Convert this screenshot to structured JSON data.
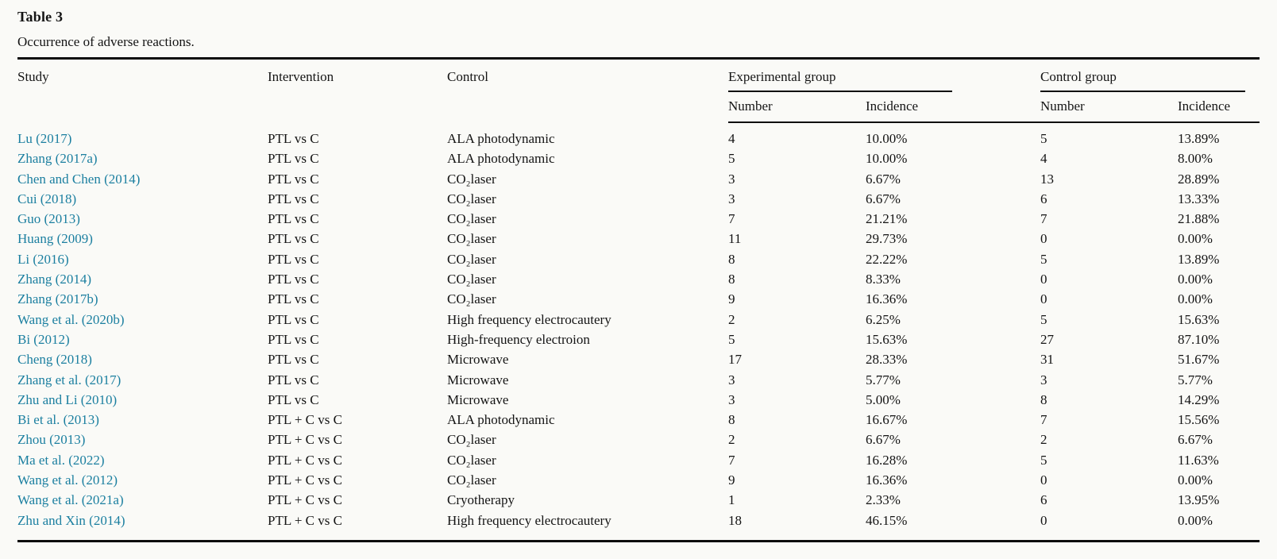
{
  "page": {
    "background": "#fafaf7",
    "link_color": "#1b7fa0",
    "rule_color": "#0d0d0d"
  },
  "table": {
    "label": "Table 3",
    "caption": "Occurrence of adverse reactions.",
    "columns": {
      "study": "Study",
      "intervention": "Intervention",
      "control": "Control",
      "experimental_group": "Experimental group",
      "control_group": "Control group",
      "exp_number": "Number",
      "exp_incidence": "Incidence",
      "ctl_number": "Number",
      "ctl_incidence": "Incidence"
    },
    "rows": [
      {
        "study": "Lu (2017)",
        "intervention": "PTL vs C",
        "control": "ALA photodynamic",
        "exp_number": "4",
        "exp_incidence": "10.00%",
        "ctl_number": "5",
        "ctl_incidence": "13.89%"
      },
      {
        "study": "Zhang (2017a)",
        "intervention": "PTL vs C",
        "control": "ALA photodynamic",
        "exp_number": "5",
        "exp_incidence": "10.00%",
        "ctl_number": "4",
        "ctl_incidence": "8.00%"
      },
      {
        "study": "Chen and Chen (2014)",
        "intervention": "PTL vs C",
        "control": "CO₂laser",
        "exp_number": "3",
        "exp_incidence": "6.67%",
        "ctl_number": "13",
        "ctl_incidence": "28.89%"
      },
      {
        "study": "Cui (2018)",
        "intervention": "PTL vs C",
        "control": "CO₂laser",
        "exp_number": "3",
        "exp_incidence": "6.67%",
        "ctl_number": "6",
        "ctl_incidence": "13.33%"
      },
      {
        "study": "Guo (2013)",
        "intervention": "PTL vs C",
        "control": "CO₂laser",
        "exp_number": "7",
        "exp_incidence": "21.21%",
        "ctl_number": "7",
        "ctl_incidence": "21.88%"
      },
      {
        "study": "Huang (2009)",
        "intervention": "PTL vs C",
        "control": "CO₂laser",
        "exp_number": "11",
        "exp_incidence": "29.73%",
        "ctl_number": "0",
        "ctl_incidence": "0.00%"
      },
      {
        "study": "Li (2016)",
        "intervention": "PTL vs C",
        "control": "CO₂laser",
        "exp_number": "8",
        "exp_incidence": "22.22%",
        "ctl_number": "5",
        "ctl_incidence": "13.89%"
      },
      {
        "study": "Zhang (2014)",
        "intervention": "PTL vs C",
        "control": "CO₂laser",
        "exp_number": "8",
        "exp_incidence": "8.33%",
        "ctl_number": "0",
        "ctl_incidence": "0.00%"
      },
      {
        "study": "Zhang (2017b)",
        "intervention": "PTL vs C",
        "control": "CO₂laser",
        "exp_number": "9",
        "exp_incidence": "16.36%",
        "ctl_number": "0",
        "ctl_incidence": "0.00%"
      },
      {
        "study": "Wang et al. (2020b)",
        "intervention": "PTL vs C",
        "control": "High frequency electrocautery",
        "exp_number": "2",
        "exp_incidence": "6.25%",
        "ctl_number": "5",
        "ctl_incidence": "15.63%"
      },
      {
        "study": "Bi (2012)",
        "intervention": "PTL vs C",
        "control": "High-frequency electroion",
        "exp_number": "5",
        "exp_incidence": "15.63%",
        "ctl_number": "27",
        "ctl_incidence": "87.10%"
      },
      {
        "study": "Cheng (2018)",
        "intervention": "PTL vs C",
        "control": "Microwave",
        "exp_number": "17",
        "exp_incidence": "28.33%",
        "ctl_number": "31",
        "ctl_incidence": "51.67%"
      },
      {
        "study": "Zhang et al. (2017)",
        "intervention": "PTL vs C",
        "control": "Microwave",
        "exp_number": "3",
        "exp_incidence": "5.77%",
        "ctl_number": "3",
        "ctl_incidence": "5.77%"
      },
      {
        "study": "Zhu and Li (2010)",
        "intervention": "PTL vs C",
        "control": "Microwave",
        "exp_number": "3",
        "exp_incidence": "5.00%",
        "ctl_number": "8",
        "ctl_incidence": "14.29%"
      },
      {
        "study": "Bi et al. (2013)",
        "intervention": "PTL + C vs C",
        "control": "ALA photodynamic",
        "exp_number": "8",
        "exp_incidence": "16.67%",
        "ctl_number": "7",
        "ctl_incidence": "15.56%"
      },
      {
        "study": "Zhou (2013)",
        "intervention": "PTL + C vs C",
        "control": "CO₂laser",
        "exp_number": "2",
        "exp_incidence": "6.67%",
        "ctl_number": "2",
        "ctl_incidence": "6.67%"
      },
      {
        "study": "Ma et al. (2022)",
        "intervention": "PTL + C vs C",
        "control": "CO₂laser",
        "exp_number": "7",
        "exp_incidence": "16.28%",
        "ctl_number": "5",
        "ctl_incidence": "11.63%"
      },
      {
        "study": "Wang et al. (2012)",
        "intervention": "PTL + C vs C",
        "control": "CO₂laser",
        "exp_number": "9",
        "exp_incidence": "16.36%",
        "ctl_number": "0",
        "ctl_incidence": "0.00%"
      },
      {
        "study": "Wang et al. (2021a)",
        "intervention": "PTL + C vs C",
        "control": "Cryotherapy",
        "exp_number": "1",
        "exp_incidence": "2.33%",
        "ctl_number": "6",
        "ctl_incidence": "13.95%"
      },
      {
        "study": "Zhu and Xin (2014)",
        "intervention": "PTL + C vs C",
        "control": "High frequency electrocautery",
        "exp_number": "18",
        "exp_incidence": "46.15%",
        "ctl_number": "0",
        "ctl_incidence": "0.00%"
      }
    ]
  }
}
